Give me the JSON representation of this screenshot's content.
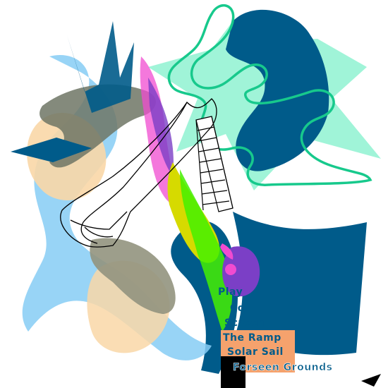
{
  "labels": {
    "play": "Play",
    "co": "Co",
    "screen": "Screen",
    "ramp": "The Ramp",
    "sail": "Solar Sail",
    "grounds": "Forseen Grounds"
  },
  "colors": {
    "teal": "#005b8a",
    "mint": "#8ff2d1",
    "green_outline": "#17c98c",
    "light_blue": "#86cdf5",
    "peach": "#f9d7a7",
    "olive": "#92947e",
    "purple": "#7b3fc6",
    "magenta": "#f04bd0",
    "yellow": "#d6da00",
    "lime": "#44f000",
    "salmon": "#f5a26d",
    "black": "#000000"
  }
}
